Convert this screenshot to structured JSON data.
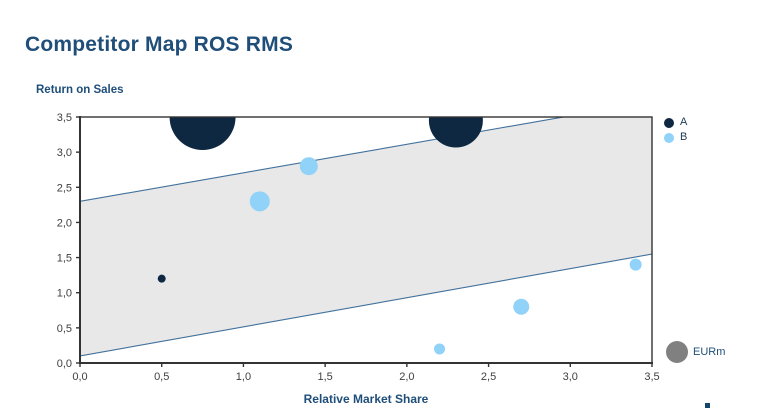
{
  "page": {
    "title": "Competitor Map ROS RMS"
  },
  "legend": {
    "items": [
      {
        "label": "A",
        "color": "#0E2841"
      },
      {
        "label": "B",
        "color": "#90D2F8"
      }
    ]
  },
  "chart_data": {
    "type": "scatter",
    "subtype": "bubble",
    "title": "Competitor Map ROS RMS",
    "xlabel": "Relative Market Share",
    "ylabel": "Return on Sales",
    "xlim": [
      0,
      3.5
    ],
    "ylim": [
      0,
      3.5
    ],
    "grid": false,
    "legend_position": "top-right",
    "decimal_style": "comma",
    "x_tick_values": [
      0,
      0.5,
      1,
      1.5,
      2,
      2.5,
      3,
      3.5
    ],
    "x_tick_labels": [
      "0,0",
      "0,5",
      "1,0",
      "1,5",
      "2,0",
      "2,5",
      "3,0",
      "3,5"
    ],
    "y_tick_values": [
      0,
      0.5,
      1,
      1.5,
      2,
      2.5,
      3,
      3.5
    ],
    "y_tick_labels": [
      "0,0",
      "0,5",
      "1,0",
      "1,5",
      "2,0",
      "2,5",
      "3,0",
      "3,5"
    ],
    "band": {
      "fill": "#E8E8E8",
      "stroke": "#41719C",
      "upper": {
        "x0": 0,
        "y0": 2.3,
        "x1": 3.5,
        "y1": 3.72
      },
      "lower": {
        "x0": 0,
        "y0": 0.1,
        "x1": 3.5,
        "y1": 1.55
      }
    },
    "series": [
      {
        "name": "A",
        "color": "#0E2841",
        "points": [
          {
            "x": 0.75,
            "y": 3.5,
            "r": 33
          },
          {
            "x": 2.3,
            "y": 3.45,
            "r": 27
          },
          {
            "x": 0.5,
            "y": 1.2,
            "r": 4
          }
        ]
      },
      {
        "name": "B",
        "color": "#90D2F8",
        "points": [
          {
            "x": 1.1,
            "y": 2.3,
            "r": 10
          },
          {
            "x": 1.4,
            "y": 2.8,
            "r": 9
          },
          {
            "x": 2.2,
            "y": 0.2,
            "r": 5.5
          },
          {
            "x": 2.7,
            "y": 0.8,
            "r": 8
          },
          {
            "x": 3.4,
            "y": 1.4,
            "r": 6
          }
        ]
      }
    ],
    "size_legend": {
      "label": "EURm",
      "color": "#808080"
    },
    "axis_color": "#333333",
    "tick_label_color": "#404040"
  }
}
